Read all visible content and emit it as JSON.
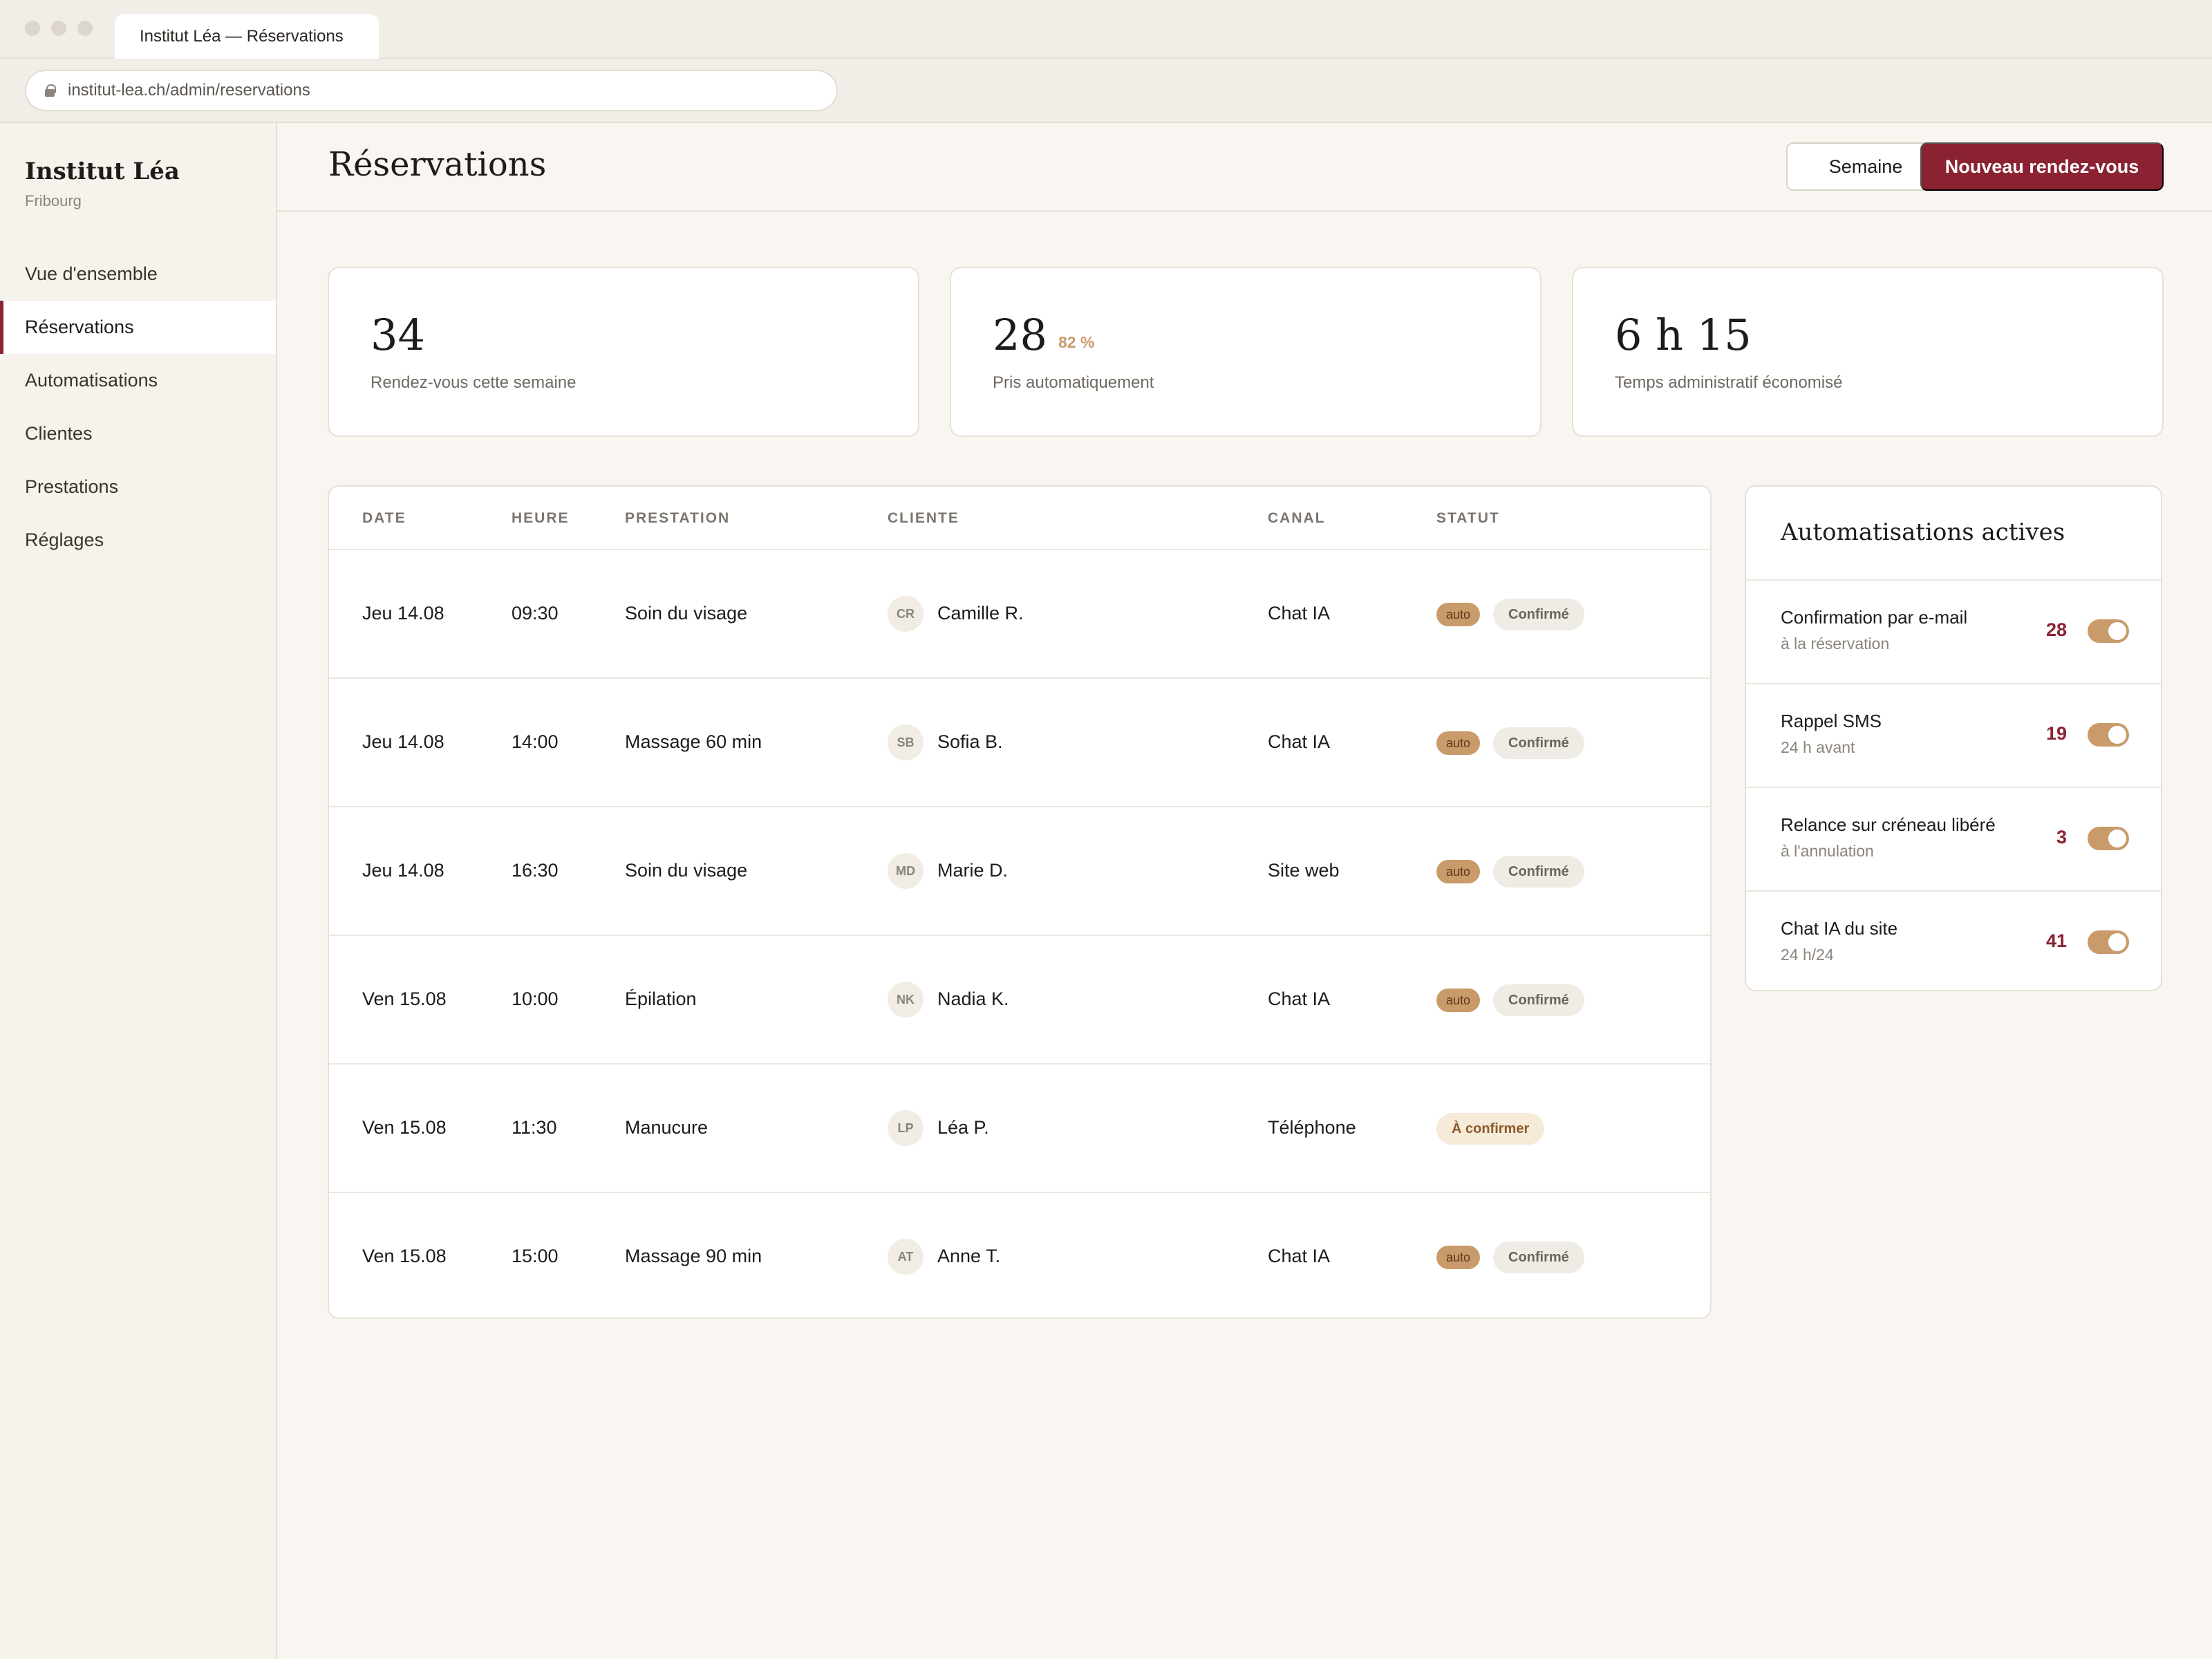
{
  "browser": {
    "tab_title": "Institut Léa — Réservations",
    "url": "institut-lea.ch/admin/reservations"
  },
  "sidebar": {
    "brand": "Institut Léa",
    "location": "Fribourg",
    "items": [
      {
        "label": "Vue d'ensemble",
        "active": false
      },
      {
        "label": "Réservations",
        "active": true
      },
      {
        "label": "Automatisations",
        "active": false
      },
      {
        "label": "Clientes",
        "active": false
      },
      {
        "label": "Prestations",
        "active": false
      },
      {
        "label": "Réglages",
        "active": false
      }
    ]
  },
  "header": {
    "title": "Réservations",
    "week_button": "Semaine",
    "new_button": "Nouveau rendez-vous"
  },
  "stats": [
    {
      "value": "34",
      "percent": "",
      "label": "Rendez-vous cette semaine"
    },
    {
      "value": "28",
      "percent": "82 %",
      "label": "Pris automatiquement"
    },
    {
      "value": "6 h 15",
      "percent": "",
      "label": "Temps administratif économisé"
    }
  ],
  "table": {
    "columns": [
      "DATE",
      "HEURE",
      "PRESTATION",
      "CLIENTE",
      "CANAL",
      "STATUT"
    ],
    "rows": [
      {
        "date": "Jeu 14.08",
        "time": "09:30",
        "service": "Soin du visage",
        "initials": "CR",
        "client": "Camille R.",
        "channel": "Chat IA",
        "auto": "auto",
        "status": "Confirmé"
      },
      {
        "date": "Jeu 14.08",
        "time": "14:00",
        "service": "Massage 60 min",
        "initials": "SB",
        "client": "Sofia B.",
        "channel": "Chat IA",
        "auto": "auto",
        "status": "Confirmé"
      },
      {
        "date": "Jeu 14.08",
        "time": "16:30",
        "service": "Soin du visage",
        "initials": "MD",
        "client": "Marie D.",
        "channel": "Site web",
        "auto": "auto",
        "status": "Confirmé"
      },
      {
        "date": "Ven 15.08",
        "time": "10:00",
        "service": "Épilation",
        "initials": "NK",
        "client": "Nadia K.",
        "channel": "Chat IA",
        "auto": "auto",
        "status": "Confirmé"
      },
      {
        "date": "Ven 15.08",
        "time": "11:30",
        "service": "Manucure",
        "initials": "LP",
        "client": "Léa P.",
        "channel": "Téléphone",
        "auto": "",
        "status": "À confirmer"
      },
      {
        "date": "Ven 15.08",
        "time": "15:00",
        "service": "Massage 90 min",
        "initials": "AT",
        "client": "Anne T.",
        "channel": "Chat IA",
        "auto": "auto",
        "status": "Confirmé"
      }
    ]
  },
  "automations": {
    "title": "Automatisations actives",
    "items": [
      {
        "name": "Confirmation par e-mail",
        "sub": "à la réservation",
        "count": "28",
        "enabled": true
      },
      {
        "name": "Rappel SMS",
        "sub": "24 h avant",
        "count": "19",
        "enabled": true
      },
      {
        "name": "Relance sur créneau libéré",
        "sub": "à l'annulation",
        "count": "3",
        "enabled": true
      },
      {
        "name": "Chat IA du site",
        "sub": "24 h/24",
        "count": "41",
        "enabled": true
      }
    ]
  },
  "colors": {
    "accent": "#8b2232",
    "gold": "#c99a6a",
    "background": "#f9f6f1"
  }
}
